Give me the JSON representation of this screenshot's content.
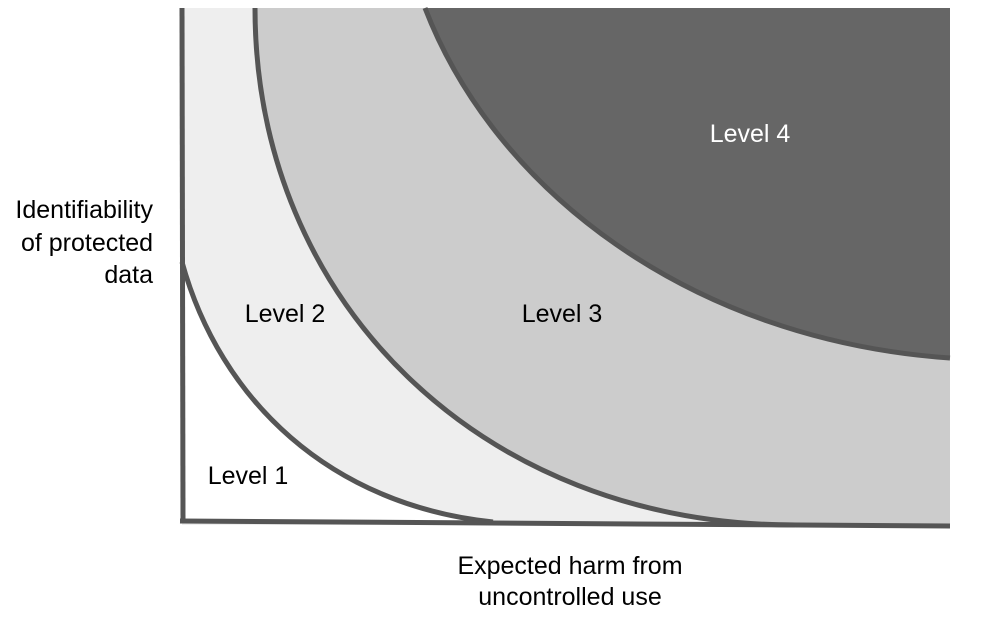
{
  "y_axis_label": [
    "Identifiability",
    "of protected",
    "data"
  ],
  "x_axis_label": [
    "Expected harm from",
    "uncontrolled use"
  ],
  "levels": [
    {
      "name": "Level 1",
      "fill": "#ffffff",
      "text_color": "#000000"
    },
    {
      "name": "Level 2",
      "fill": "#eeeeee",
      "text_color": "#000000"
    },
    {
      "name": "Level 3",
      "fill": "#cccccc",
      "text_color": "#000000"
    },
    {
      "name": "Level 4",
      "fill": "#666666",
      "text_color": "#ffffff"
    }
  ],
  "stroke_color": "#555555"
}
